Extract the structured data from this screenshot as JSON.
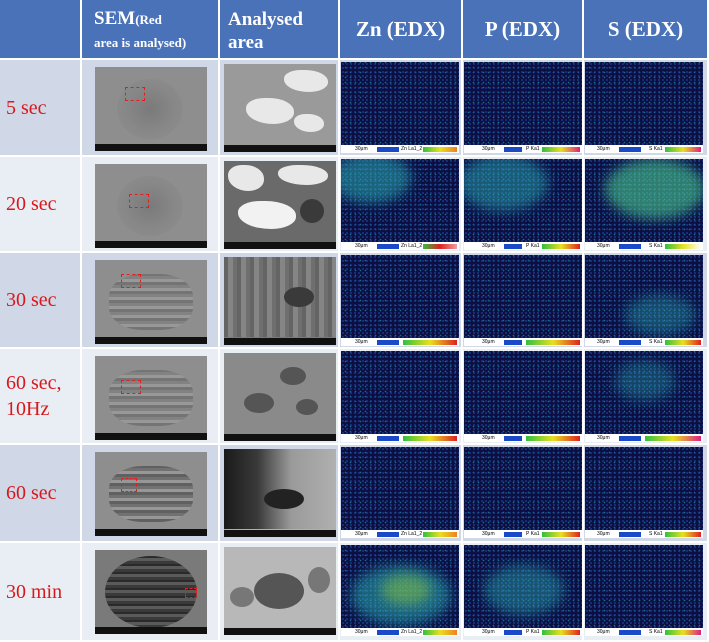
{
  "headers": {
    "sem_main": "SEM",
    "sem_note_a": "(Red",
    "sem_note_b": "area is analysed)",
    "analysed_a": "Analysed",
    "analysed_b": "area",
    "zn": "Zn (EDX)",
    "p": "P (EDX)",
    "s": "S (EDX)"
  },
  "rows": [
    {
      "label_a": "5 sec",
      "label_b": ""
    },
    {
      "label_a": "20 sec",
      "label_b": ""
    },
    {
      "label_a": "30 sec",
      "label_b": ""
    },
    {
      "label_a": "60 sec,",
      "label_b": "10Hz"
    },
    {
      "label_a": "60 sec",
      "label_b": ""
    },
    {
      "label_a": "30 min",
      "label_b": ""
    }
  ],
  "edx_labels": {
    "scale": "30μm",
    "zn": "Zn La1_2",
    "p": "P Ka1",
    "s": "S Ka1"
  },
  "colors": {
    "header_bg": "#4a72b8",
    "row_bg_a": "#d0d8e8",
    "row_bg_b": "#e9edf4",
    "label_red": "#d7191c",
    "map_bg": "#0b1040"
  }
}
